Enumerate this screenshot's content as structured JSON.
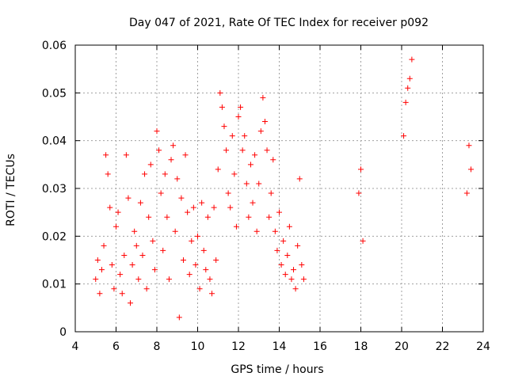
{
  "chart_data": {
    "type": "scatter",
    "title": "Day 047 of 2021, Rate Of TEC Index for receiver p092",
    "xlabel": "GPS time / hours",
    "ylabel": "ROTI / TECUs",
    "xlim": [
      4,
      24
    ],
    "ylim": [
      0,
      0.06
    ],
    "xticks": [
      4,
      6,
      8,
      10,
      12,
      14,
      16,
      18,
      20,
      22,
      24
    ],
    "xtick_labels": [
      "4",
      "6",
      "8",
      "10",
      "12",
      "14",
      "16",
      "18",
      "20",
      "22",
      "24"
    ],
    "yticks": [
      0,
      0.01,
      0.02,
      0.03,
      0.04,
      0.05,
      0.06
    ],
    "ytick_labels": [
      "0",
      "0.01",
      "0.02",
      "0.03",
      "0.04",
      "0.05",
      "0.06"
    ],
    "grid": true,
    "marker": "plus",
    "color": "#ff0000",
    "series": [
      {
        "x": [
          5.0,
          5.1,
          5.2,
          5.3,
          5.4,
          5.5,
          5.6,
          5.7,
          5.8,
          5.9,
          6.0,
          6.1,
          6.2,
          6.3,
          6.4,
          6.5,
          6.6,
          6.7,
          6.8,
          6.9,
          7.0,
          7.1,
          7.2,
          7.3,
          7.4,
          7.5,
          7.6,
          7.7,
          7.8,
          7.9,
          8.0,
          8.1,
          8.2,
          8.3,
          8.4,
          8.5,
          8.6,
          8.7,
          8.8,
          8.9,
          9.0,
          9.1,
          9.2,
          9.3,
          9.4,
          9.5,
          9.6,
          9.7,
          9.8,
          9.9,
          10.0,
          10.1,
          10.2,
          10.3,
          10.4,
          10.5,
          10.6,
          10.7,
          10.8,
          10.9,
          11.0,
          11.1,
          11.2,
          11.3,
          11.4,
          11.5,
          11.6,
          11.7,
          11.8,
          11.9,
          12.0,
          12.1,
          12.2,
          12.3,
          12.4,
          12.5,
          12.6,
          12.7,
          12.8,
          12.9,
          13.0,
          13.1,
          13.2,
          13.3,
          13.4,
          13.5,
          13.6,
          13.7,
          13.8,
          13.9,
          14.0,
          14.1,
          14.2,
          14.3,
          14.4,
          14.5,
          14.6,
          14.7,
          14.8,
          14.9,
          15.0,
          15.1,
          15.2,
          17.9,
          18.0,
          18.1,
          20.1,
          20.2,
          20.3,
          20.4,
          20.5,
          23.2,
          23.3,
          23.4
        ],
        "y": [
          0.011,
          0.015,
          0.008,
          0.013,
          0.018,
          0.037,
          0.033,
          0.026,
          0.014,
          0.009,
          0.022,
          0.025,
          0.012,
          0.008,
          0.016,
          0.037,
          0.028,
          0.006,
          0.014,
          0.021,
          0.018,
          0.011,
          0.027,
          0.016,
          0.033,
          0.009,
          0.024,
          0.035,
          0.019,
          0.013,
          0.042,
          0.038,
          0.029,
          0.017,
          0.033,
          0.024,
          0.011,
          0.036,
          0.039,
          0.021,
          0.032,
          0.003,
          0.028,
          0.015,
          0.037,
          0.025,
          0.012,
          0.019,
          0.026,
          0.014,
          0.02,
          0.009,
          0.027,
          0.017,
          0.013,
          0.024,
          0.011,
          0.008,
          0.026,
          0.015,
          0.034,
          0.05,
          0.047,
          0.043,
          0.038,
          0.029,
          0.026,
          0.041,
          0.033,
          0.022,
          0.045,
          0.047,
          0.038,
          0.041,
          0.031,
          0.024,
          0.035,
          0.027,
          0.037,
          0.021,
          0.031,
          0.042,
          0.049,
          0.044,
          0.038,
          0.024,
          0.029,
          0.036,
          0.021,
          0.017,
          0.025,
          0.014,
          0.019,
          0.012,
          0.016,
          0.022,
          0.011,
          0.013,
          0.009,
          0.018,
          0.032,
          0.014,
          0.011,
          0.029,
          0.034,
          0.019,
          0.041,
          0.048,
          0.051,
          0.053,
          0.057,
          0.029,
          0.039,
          0.034
        ]
      }
    ]
  }
}
